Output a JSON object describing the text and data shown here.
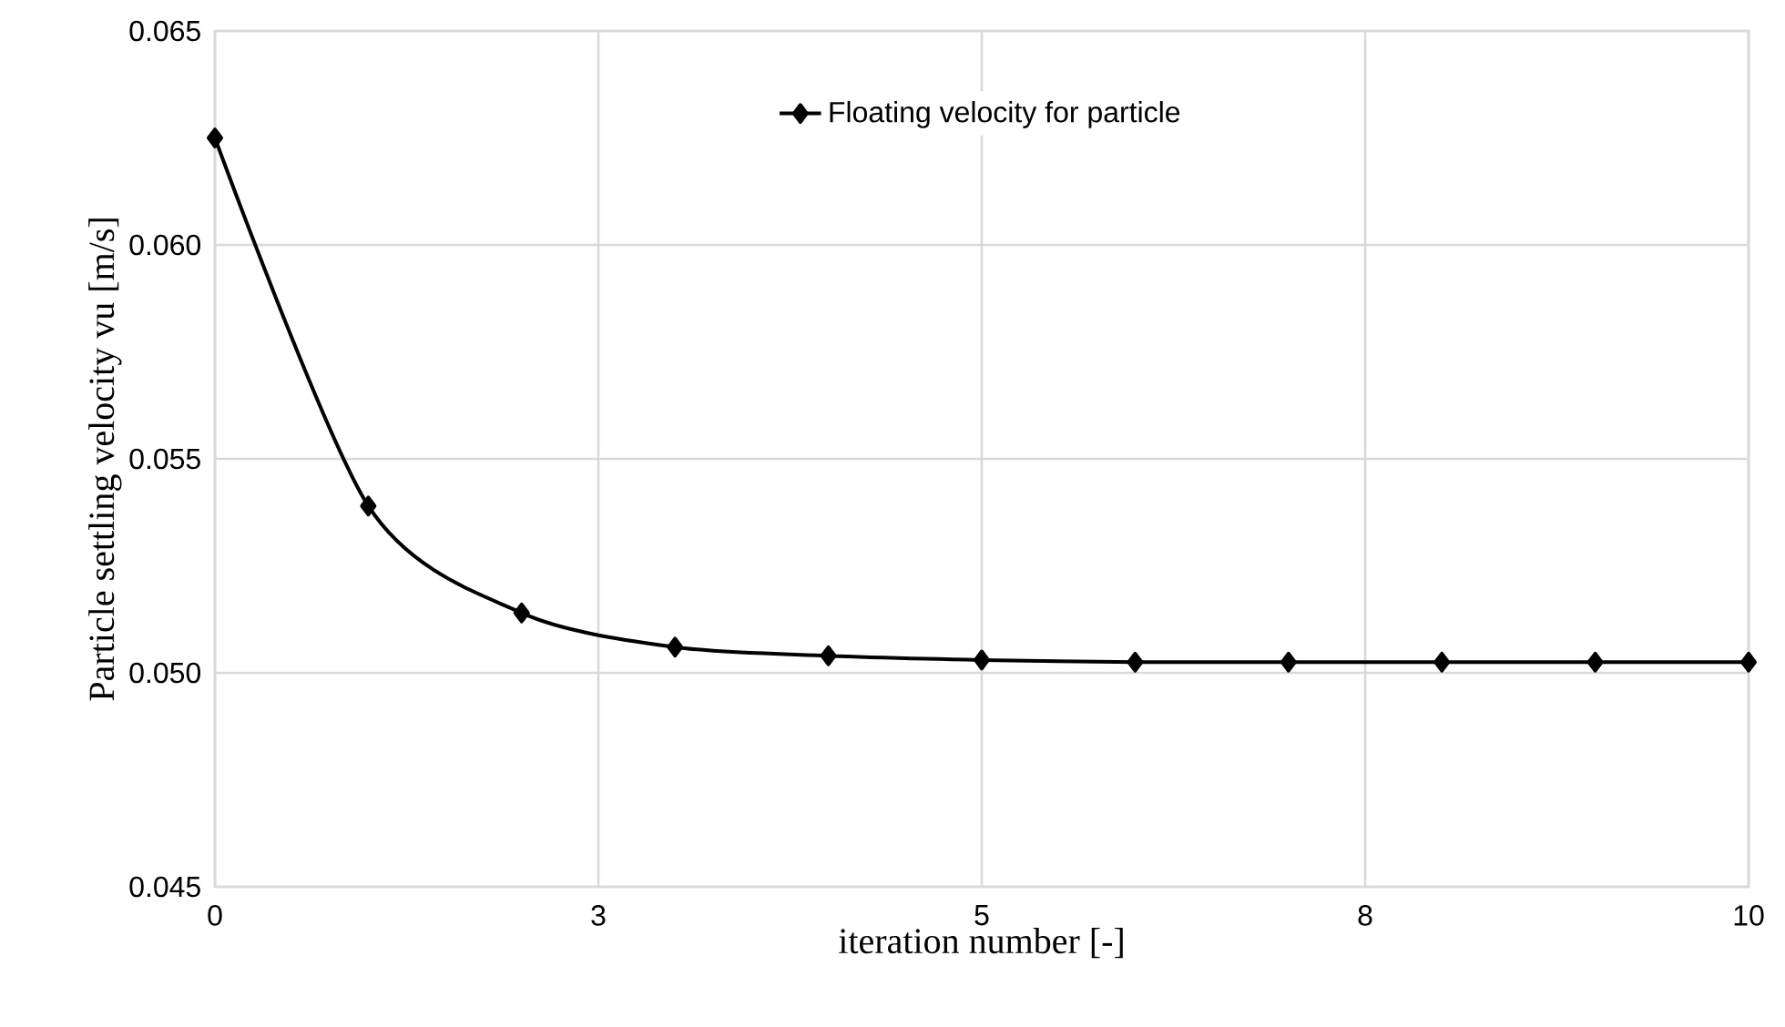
{
  "chart_data": {
    "type": "line",
    "xlabel": "iteration number [-]",
    "ylabel": "Particle settling velocity vu [m/s]",
    "x": [
      0,
      1,
      2,
      3,
      4,
      5,
      6,
      7,
      8,
      9,
      10
    ],
    "series": [
      {
        "name": "Floating velocity for particle",
        "color": "#000000",
        "values": [
          0.0625,
          0.0539,
          0.0514,
          0.0506,
          0.0504,
          0.0503,
          0.05025,
          0.05025,
          0.05025,
          0.05025,
          0.05025
        ]
      }
    ],
    "xlim": [
      0,
      10
    ],
    "ylim": [
      0.045,
      0.065
    ],
    "xticks": [
      0,
      {
        "value": 2.5,
        "label": "3"
      },
      5,
      {
        "value": 7.5,
        "label": "8"
      },
      10
    ],
    "yticks": [
      0.045,
      {
        "value": 0.05,
        "label": "0.050"
      },
      0.055,
      {
        "value": 0.06,
        "label": "0.060"
      },
      0.065
    ],
    "grid": true,
    "legend": "top",
    "marker": "diamond",
    "line_style": "solid"
  }
}
